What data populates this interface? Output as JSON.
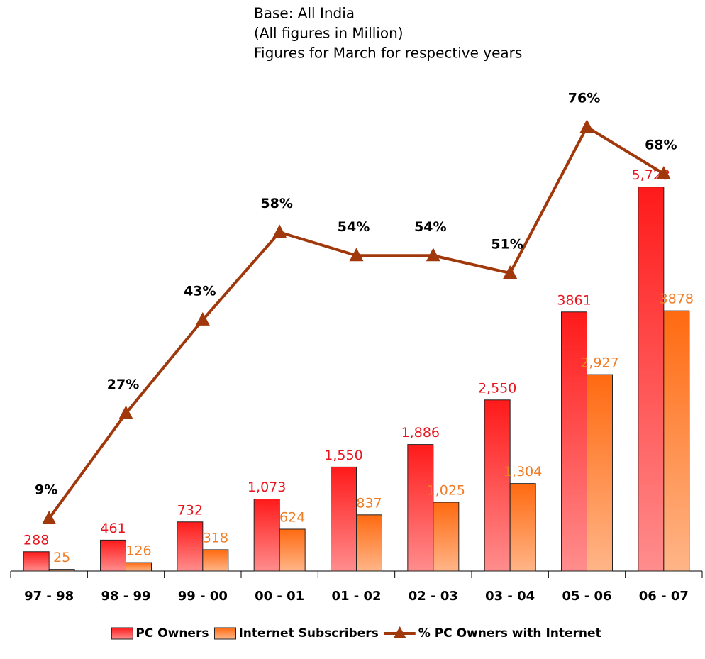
{
  "chart_data": {
    "type": "bar",
    "notes": [
      "Base: All India",
      "(All figures in Million)",
      "Figures for March for respective years"
    ],
    "categories": [
      "97 - 98",
      "98 - 99",
      "99 - 00",
      "00 - 01",
      "01 - 02",
      "02 - 03",
      "03 - 04",
      "05 - 06",
      "06 - 07"
    ],
    "series": [
      {
        "name": "PC Owners",
        "type": "bar",
        "color": "#ff1a1a",
        "label_color": "#e8141e",
        "values": [
          288,
          461,
          732,
          1073,
          1550,
          1886,
          2550,
          3861,
          5723
        ],
        "value_labels": [
          "288",
          "461",
          "732",
          "1,073",
          "1,550",
          "1,886",
          "2,550",
          "3861",
          "5,723"
        ]
      },
      {
        "name": "Internet Subscribers",
        "type": "bar",
        "color": "#ff6a10",
        "label_color": "#f07c24",
        "values": [
          25,
          126,
          318,
          624,
          837,
          1025,
          1304,
          2927,
          3878
        ],
        "value_labels": [
          "25",
          "126",
          "318",
          "624",
          "837",
          "1,025",
          "1,304",
          "2,927",
          "3878"
        ]
      },
      {
        "name": "% PC Owners with Internet",
        "type": "line",
        "axis": "y2",
        "color": "#a0380c",
        "label_color": "#000000",
        "values": [
          9,
          27,
          43,
          58,
          54,
          54,
          51,
          76,
          68
        ],
        "value_labels": [
          "9%",
          "27%",
          "43%",
          "58%",
          "54%",
          "54%",
          "51%",
          "76%",
          "68%"
        ]
      }
    ],
    "ylim": [
      0,
      7400
    ],
    "y2lim": [
      0,
      85
    ],
    "legend": "bottom"
  }
}
